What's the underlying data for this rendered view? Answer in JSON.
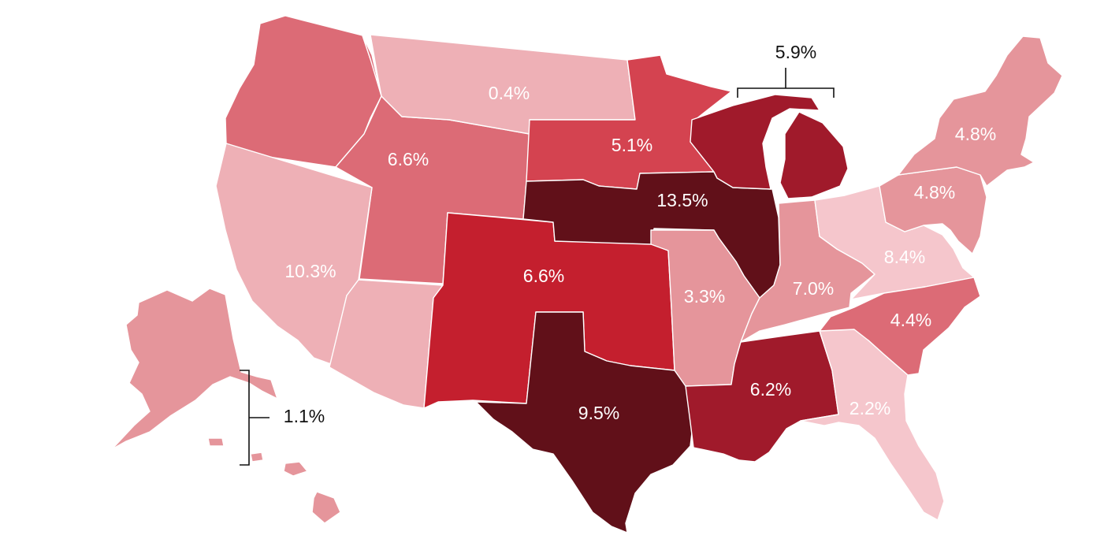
{
  "colors": {
    "level_1": "#f5c6cc",
    "level_2": "#eeb0b6",
    "level_3": "#e5959b",
    "level_4": "#dc6b76",
    "level_5": "#d44350",
    "level_6": "#c41f2e",
    "level_7": "#a01a2b",
    "level_8": "#611019"
  },
  "regions": [
    {
      "id": "pacific-northwest",
      "color": "level_4",
      "label": ""
    },
    {
      "id": "idaho-wyoming-utah",
      "color": "level_4",
      "label": "6.6%"
    },
    {
      "id": "california-nevada",
      "color": "level_2",
      "label": "10.3%"
    },
    {
      "id": "arizona",
      "color": "level_2",
      "label": ""
    },
    {
      "id": "montana-dakotas",
      "color": "level_2",
      "label": "0.4%"
    },
    {
      "id": "south-dakota-minnesota",
      "color": "level_5",
      "label": "5.1%"
    },
    {
      "id": "colorado-kansas-new-mexico-oklahoma",
      "color": "level_6",
      "label": "6.6%"
    },
    {
      "id": "nebraska-iowa-illinois",
      "color": "level_8",
      "label": "13.5%"
    },
    {
      "id": "texas",
      "color": "level_8",
      "label": "9.5%"
    },
    {
      "id": "missouri-arkansas",
      "color": "level_3",
      "label": "3.3%"
    },
    {
      "id": "wisconsin-michigan",
      "color": "level_7",
      "label": ""
    },
    {
      "id": "indiana-kentucky-tennessee",
      "color": "level_3",
      "label": "7.0%"
    },
    {
      "id": "louisiana-mississippi-alabama",
      "color": "level_7",
      "label": "6.2%"
    },
    {
      "id": "ohio-west-virginia-virginia",
      "color": "level_1",
      "label": "8.4%"
    },
    {
      "id": "pennsylvania-new-jersey-maryland",
      "color": "level_3",
      "label": "4.8%"
    },
    {
      "id": "new-england-new-york",
      "color": "level_3",
      "label": "4.8%"
    },
    {
      "id": "carolinas",
      "color": "level_4",
      "label": "4.4%"
    },
    {
      "id": "georgia-florida",
      "color": "level_1",
      "label": "2.2%"
    },
    {
      "id": "alaska-hawaii",
      "color": "level_3",
      "label": ""
    }
  ],
  "callouts": {
    "great_lakes": "5.9%",
    "alaska_hawaii": "1.1%"
  }
}
